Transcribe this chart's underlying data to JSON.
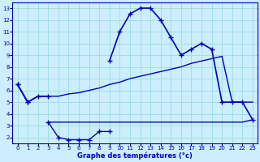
{
  "title": "Graphe des températures (°c)",
  "bg_color": "#cceeff",
  "grid_color": "#99dddd",
  "line_color": "#0000bb",
  "hours": [
    0,
    1,
    2,
    3,
    4,
    5,
    6,
    7,
    8,
    9,
    10,
    11,
    12,
    13,
    14,
    15,
    16,
    17,
    18,
    19,
    20,
    21,
    22,
    23
  ],
  "curve_main": [
    6.5,
    5.0,
    5.5,
    5.5,
    null,
    null,
    null,
    null,
    null,
    8.5,
    11.0,
    12.5,
    13.0,
    13.0,
    12.0,
    10.5,
    9.0,
    9.5,
    10.0,
    9.5,
    5.0,
    5.0,
    5.0,
    3.5
  ],
  "curve_low": [
    6.5,
    5.0,
    null,
    3.3,
    2.0,
    1.8,
    1.8,
    1.8,
    2.5,
    2.5,
    null,
    null,
    null,
    null,
    null,
    null,
    null,
    null,
    null,
    null,
    null,
    null,
    null,
    null
  ],
  "curve_upper_env": [
    6.5,
    5.0,
    5.5,
    5.5,
    5.5,
    5.7,
    5.8,
    6.0,
    6.2,
    6.5,
    6.7,
    7.0,
    7.2,
    7.4,
    7.6,
    7.8,
    8.0,
    8.3,
    8.5,
    8.7,
    8.9,
    5.0,
    5.0,
    5.0
  ],
  "curve_lower_env": [
    null,
    null,
    null,
    3.3,
    3.3,
    3.3,
    3.3,
    3.3,
    3.3,
    3.3,
    3.3,
    3.3,
    3.3,
    3.3,
    3.3,
    3.3,
    3.3,
    3.3,
    3.3,
    3.3,
    3.3,
    3.3,
    3.3,
    3.5
  ],
  "ylim": [
    1.5,
    13.5
  ],
  "xlim": [
    -0.5,
    23.5
  ],
  "yticks": [
    2,
    3,
    4,
    5,
    6,
    7,
    8,
    9,
    10,
    11,
    12,
    13
  ],
  "xticks": [
    0,
    1,
    2,
    3,
    4,
    5,
    6,
    7,
    8,
    9,
    10,
    11,
    12,
    13,
    14,
    15,
    16,
    17,
    18,
    19,
    20,
    21,
    22,
    23
  ]
}
